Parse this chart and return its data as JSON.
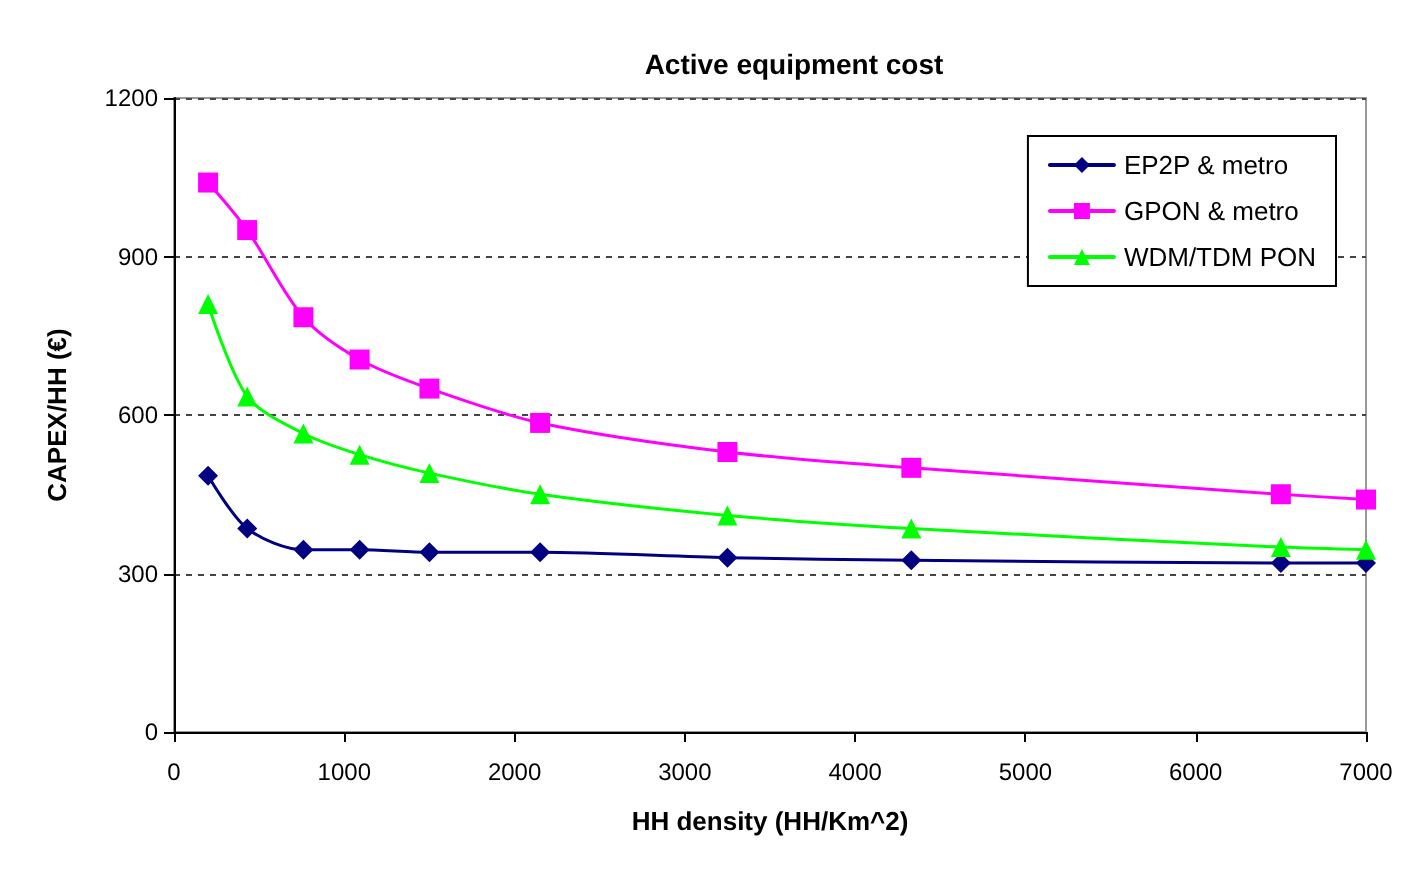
{
  "chart_data": {
    "type": "line",
    "title": "Active equipment cost",
    "xlabel": "HH density (HH/Km^2)",
    "ylabel": "CAPEX/HH (€)",
    "x": [
      200,
      430,
      760,
      1090,
      1500,
      2150,
      3250,
      4330,
      6500,
      7000
    ],
    "series": [
      {
        "name": "EP2P & metro",
        "color": "#000080",
        "marker": "diamond",
        "values": [
          485,
          385,
          345,
          345,
          340,
          340,
          330,
          325,
          320,
          320
        ]
      },
      {
        "name": "GPON & metro",
        "color": "#ff00ff",
        "marker": "square",
        "values": [
          1040,
          950,
          785,
          705,
          650,
          585,
          530,
          500,
          450,
          440
        ]
      },
      {
        "name": "WDM/TDM PON",
        "color": "#00ff00",
        "marker": "triangle",
        "values": [
          810,
          635,
          565,
          525,
          490,
          450,
          410,
          385,
          350,
          345
        ]
      }
    ],
    "xlim": [
      0,
      7000
    ],
    "xticks": [
      0,
      1000,
      2000,
      3000,
      4000,
      5000,
      6000,
      7000
    ],
    "ylim": [
      0,
      1200
    ],
    "yticks": [
      0,
      300,
      600,
      900,
      1200
    ],
    "grid": "y",
    "legend": "top right",
    "line_style": "solid"
  }
}
